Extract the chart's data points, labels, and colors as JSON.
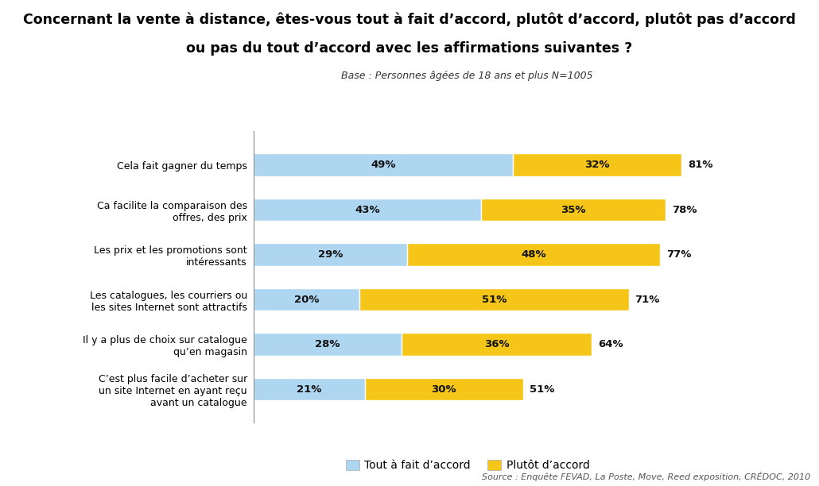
{
  "title_line1": "Concernant la vente à distance, êtes-vous tout à fait d’accord, plutôt d’accord, plutôt pas d’accord",
  "title_line2": "ou pas du tout d’accord avec les affirmations suivantes ?",
  "subtitle": "Base : Personnes âgées de 18 ans et plus N=1005",
  "source": "Source : Enquête FEVAD, La Poste, Move, Reed exposition, CRÉDOC, 2010",
  "categories": [
    "Cela fait gagner du temps",
    "Ca facilite la comparaison des\noffres, des prix",
    "Les prix et les promotions sont\nintéressants",
    "Les catalogues, les courriers ou\nles sites Internet sont attractifs",
    "Il y a plus de choix sur catalogue\nqu’en magasin",
    "C’est plus facile d’acheter sur\nun site Internet en ayant reçu\navant un catalogue"
  ],
  "values_blue": [
    49,
    43,
    29,
    20,
    28,
    21
  ],
  "values_yellow": [
    32,
    35,
    48,
    51,
    36,
    30
  ],
  "totals": [
    81,
    78,
    77,
    71,
    64,
    51
  ],
  "color_blue": "#AED6F1",
  "color_yellow": "#F5C518",
  "legend_blue": "Tout à fait d’accord",
  "legend_yellow": "Plutôt d’accord",
  "background_color": "#FFFFFF",
  "xlim": [
    0,
    90
  ]
}
